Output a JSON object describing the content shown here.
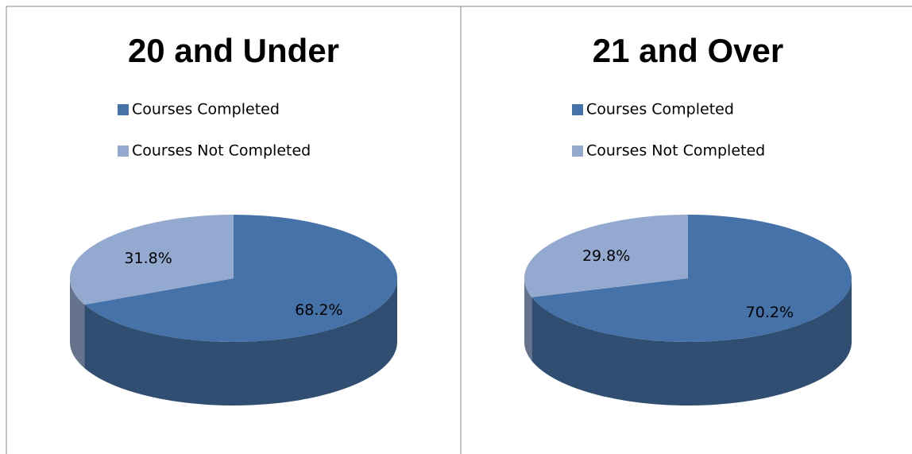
{
  "chart_data": [
    {
      "type": "pie",
      "title": "20 and Under",
      "categories": [
        "Courses Completed",
        "Courses Not Completed"
      ],
      "values": [
        68.2,
        31.8
      ],
      "value_labels": [
        "68.2%",
        "31.8%"
      ],
      "colors": [
        "#4572a8",
        "#94a9cf"
      ]
    },
    {
      "type": "pie",
      "title": "21 and Over",
      "categories": [
        "Courses Completed",
        "Courses Not Completed"
      ],
      "values": [
        70.2,
        29.8
      ],
      "value_labels": [
        "70.2%",
        "29.8%"
      ],
      "colors": [
        "#4572a8",
        "#94a9cf"
      ]
    }
  ]
}
